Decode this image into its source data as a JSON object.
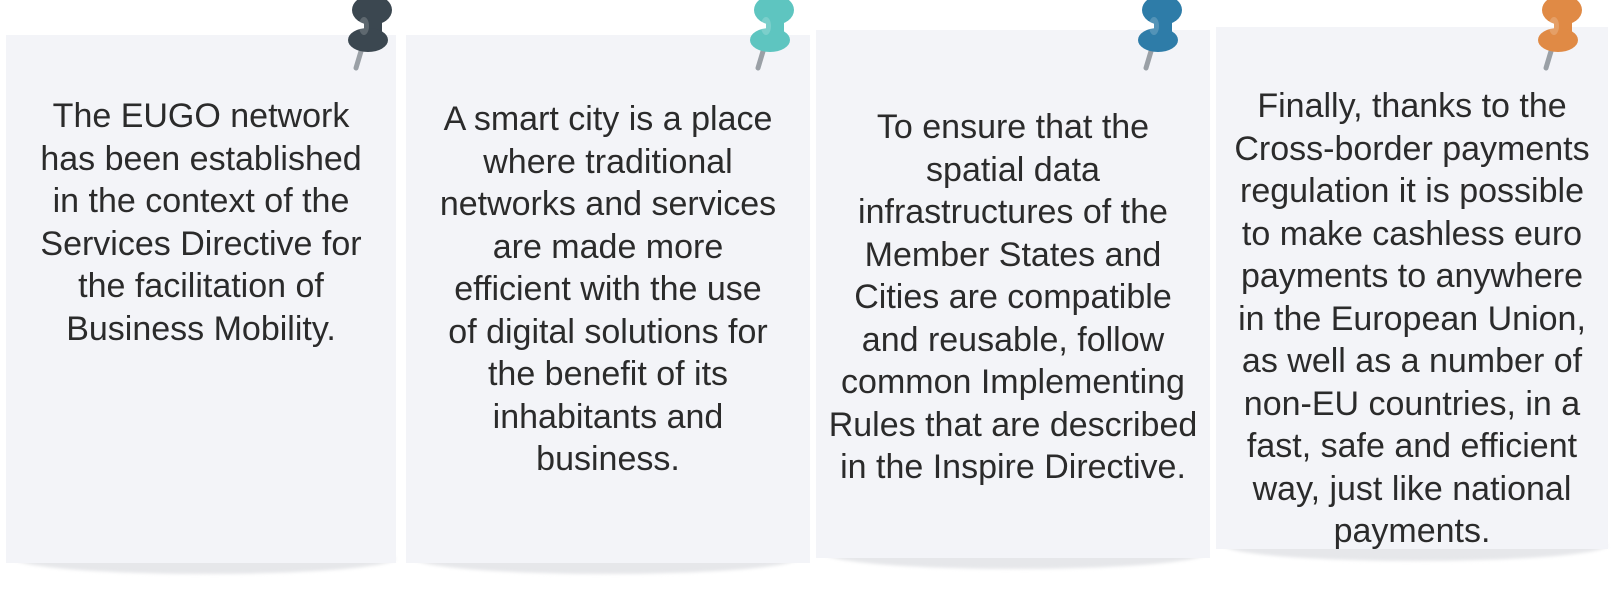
{
  "notes": [
    {
      "text": "The EUGO network\nhas been established\nin the context of the\nServices Directive for\nthe facilitation of\nBusiness Mobility.",
      "pin_color": "#3b4750",
      "pin_icon": "pushpin-icon"
    },
    {
      "text": "A smart city is a place\nwhere traditional\nnetworks and services\nare made more\nefficient with the use\nof digital solutions for\nthe benefit of its\ninhabitants and\nbusiness.",
      "pin_color": "#5ec5c0",
      "pin_icon": "pushpin-icon"
    },
    {
      "text": "To ensure that the\nspatial data\ninfrastructures of the\nMember States and\nCities are compatible\nand reusable, follow\ncommon Implementing\nRules that are described\nin the Inspire Directive.",
      "pin_color": "#2e7ca8",
      "pin_icon": "pushpin-icon"
    },
    {
      "text": "Finally, thanks to the\nCross-border payments\nregulation it is possible\nto make cashless euro\npayments to anywhere\nin the European Union,\nas well as a number of\nnon-EU countries, in a\nfast, safe and efficient\nway, just like national\npayments.",
      "pin_color": "#e08a45",
      "pin_icon": "pushpin-icon"
    }
  ]
}
